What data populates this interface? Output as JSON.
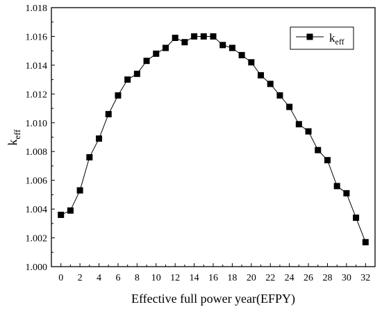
{
  "chart_data": {
    "type": "line",
    "title": "",
    "xlabel": "Effective full power year(EFPY)",
    "ylabel": {
      "main": "k",
      "sub": "eff"
    },
    "xlim": [
      -1,
      33
    ],
    "ylim": [
      1.0,
      1.018
    ],
    "x_ticks": [
      "0",
      "2",
      "4",
      "6",
      "8",
      "10",
      "12",
      "14",
      "16",
      "18",
      "20",
      "22",
      "24",
      "26",
      "28",
      "30",
      "32"
    ],
    "y_ticks": [
      "1.000",
      "1.002",
      "1.004",
      "1.006",
      "1.008",
      "1.010",
      "1.012",
      "1.014",
      "1.016",
      "1.018"
    ],
    "legend": {
      "position": "top-right",
      "entries": [
        {
          "main": "k",
          "sub": "eff"
        }
      ]
    },
    "grid": false,
    "marker": "square",
    "colors": {
      "series": "#000000"
    },
    "series": [
      {
        "name": "keff",
        "x": [
          0,
          1,
          2,
          3,
          4,
          5,
          6,
          7,
          8,
          9,
          10,
          11,
          12,
          13,
          14,
          15,
          16,
          17,
          18,
          19,
          20,
          21,
          22,
          23,
          24,
          25,
          26,
          27,
          28,
          29,
          30,
          31,
          32
        ],
        "y": [
          1.0036,
          1.0039,
          1.0053,
          1.0076,
          1.0089,
          1.0106,
          1.0119,
          1.013,
          1.0134,
          1.0143,
          1.0148,
          1.0152,
          1.0159,
          1.0156,
          1.016,
          1.016,
          1.016,
          1.0154,
          1.0152,
          1.0147,
          1.0142,
          1.0133,
          1.0127,
          1.0119,
          1.0111,
          1.0099,
          1.0094,
          1.0081,
          1.0074,
          1.0056,
          1.0051,
          1.0034,
          1.0017
        ]
      }
    ]
  }
}
